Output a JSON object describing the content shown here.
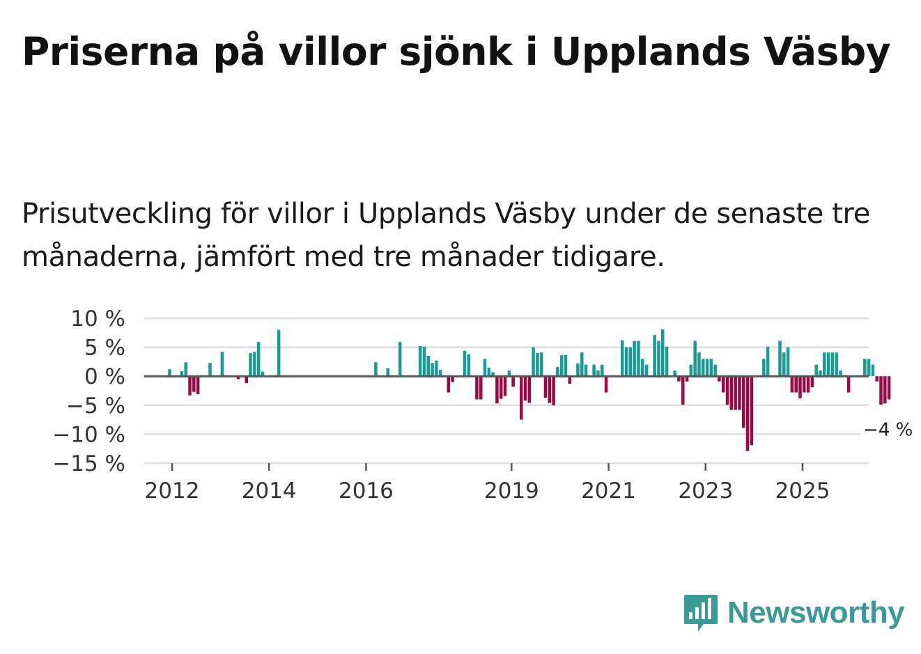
{
  "title": "Priserna på villor sjönk i Upplands Väsby",
  "subtitle": "Prisutveckling för villor i Upplands Väsby under de senaste tre månaderna, jämfört med tre månader tidigare.",
  "brand": {
    "name": "Newsworthy",
    "logo_icon": "newsworthy-chart-bubble-icon",
    "color": "#3a9a95"
  },
  "colors": {
    "positive": "#1a9c96",
    "negative": "#9b0a47",
    "zero_line": "#555555",
    "grid": "#dddddd"
  },
  "chart_data": {
    "type": "bar",
    "title": "Priserna på villor sjönk i Upplands Väsby",
    "xlabel": "",
    "ylabel": "",
    "ylim": [
      -15,
      10
    ],
    "yticks": [
      10,
      5,
      0,
      -5,
      -10,
      -15
    ],
    "ytick_labels": [
      "10 %",
      "5 %",
      "0 %",
      "−5 %",
      "−10 %",
      "−15 %"
    ],
    "xticks": [
      2012,
      2014,
      2016,
      2019,
      2021,
      2023,
      2025
    ],
    "xtick_labels": [
      "2012",
      "2014",
      "2016",
      "2019",
      "2021",
      "2023",
      "2025"
    ],
    "x_start": 2011.45,
    "x_step": 0.08333,
    "annotation": {
      "label": "−4 %",
      "value": -4
    },
    "values": [
      0,
      0,
      0,
      0,
      0,
      0,
      1.2,
      0,
      0,
      0.9,
      2.4,
      -3.3,
      -2.7,
      -3.1,
      0,
      0,
      2.3,
      0,
      0,
      4.2,
      0,
      0,
      0,
      -0.5,
      0,
      -1.2,
      4.0,
      4.2,
      5.9,
      0.8,
      0,
      0,
      0,
      8.0,
      0,
      0,
      0,
      0,
      0,
      0,
      0,
      0,
      0,
      0,
      0,
      0,
      0,
      0,
      0,
      0,
      0,
      0,
      0,
      0,
      0,
      0,
      0,
      2.4,
      0,
      0,
      1.4,
      0,
      0,
      5.9,
      0,
      0,
      0,
      0,
      5.2,
      5.1,
      3.5,
      2.3,
      2.7,
      1.1,
      0,
      -2.8,
      -1.0,
      0,
      0,
      4.4,
      3.8,
      0,
      -4.0,
      -4.0,
      3.0,
      1.5,
      0.7,
      -4.7,
      -3.9,
      -3.4,
      1.0,
      -1.8,
      0,
      -7.5,
      -4.2,
      -4.6,
      5.0,
      4.0,
      4.1,
      -3.7,
      -4.6,
      -5.0,
      1.6,
      3.6,
      3.7,
      -1.3,
      0,
      2.2,
      4.1,
      2.0,
      0,
      2.0,
      1.0,
      2.0,
      -2.8,
      0,
      0,
      0,
      6.2,
      5.0,
      5.0,
      6.1,
      6.1,
      3.0,
      2.0,
      0,
      7.1,
      6.1,
      8.1,
      5.1,
      0,
      1.0,
      -0.9,
      -4.9,
      -0.9,
      2.0,
      6.1,
      4.1,
      3.0,
      3.0,
      3.0,
      2.0,
      -0.9,
      -2.8,
      -4.9,
      -5.8,
      -5.8,
      -5.8,
      -8.9,
      -12.9,
      -11.9,
      0,
      0,
      3.0,
      5.1,
      0,
      0,
      6.1,
      4.1,
      5.0,
      -2.8,
      -2.8,
      -3.8,
      -2.8,
      -2.8,
      -1.9,
      2.0,
      1.0,
      4.1,
      4.1,
      4.1,
      4.1,
      1.0,
      0,
      -2.8,
      0,
      0,
      0,
      3.0,
      3.0,
      2.0,
      -0.9,
      -4.9,
      -4.7,
      -4.0
    ]
  }
}
